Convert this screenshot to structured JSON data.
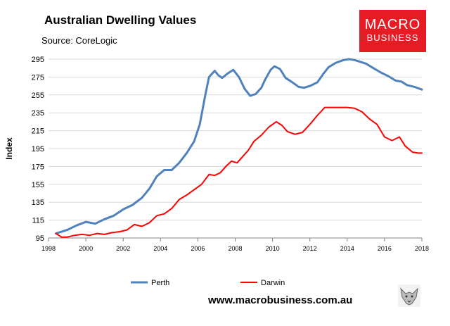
{
  "header": {
    "title": "Australian Dwelling Values",
    "source": "Source: CoreLogic"
  },
  "logo": {
    "line1": "MACRO",
    "line2": "BUSINESS"
  },
  "footer": {
    "url": "www.macrobusiness.com.au"
  },
  "colors": {
    "perth": "#4f81bd",
    "darwin": "#ff0000",
    "logo_bg": "#e61b23"
  },
  "chart_data": {
    "type": "line",
    "title": "Australian Dwelling Values",
    "xlabel": "",
    "ylabel": "Index",
    "xlim": [
      1998,
      2018
    ],
    "ylim": [
      95,
      295
    ],
    "x_ticks": [
      1998,
      2000,
      2002,
      2004,
      2006,
      2008,
      2010,
      2012,
      2014,
      2016,
      2018
    ],
    "y_ticks": [
      95,
      115,
      135,
      155,
      175,
      195,
      215,
      235,
      255,
      275,
      295
    ],
    "legend_position": "bottom",
    "series": [
      {
        "name": "Perth",
        "points": [
          [
            1998.4,
            100
          ],
          [
            1999.0,
            104
          ],
          [
            1999.5,
            109
          ],
          [
            2000.0,
            113
          ],
          [
            2000.5,
            111
          ],
          [
            2001.0,
            116
          ],
          [
            2001.5,
            120
          ],
          [
            2002.0,
            127
          ],
          [
            2002.5,
            132
          ],
          [
            2003.0,
            140
          ],
          [
            2003.4,
            150
          ],
          [
            2003.8,
            164
          ],
          [
            2004.2,
            171
          ],
          [
            2004.6,
            171
          ],
          [
            2005.0,
            179
          ],
          [
            2005.4,
            190
          ],
          [
            2005.8,
            203
          ],
          [
            2006.1,
            222
          ],
          [
            2006.4,
            255
          ],
          [
            2006.6,
            275
          ],
          [
            2006.9,
            282
          ],
          [
            2007.1,
            277
          ],
          [
            2007.3,
            274
          ],
          [
            2007.6,
            279
          ],
          [
            2007.9,
            283
          ],
          [
            2008.2,
            275
          ],
          [
            2008.5,
            262
          ],
          [
            2008.8,
            254
          ],
          [
            2009.1,
            256
          ],
          [
            2009.4,
            263
          ],
          [
            2009.6,
            272
          ],
          [
            2009.9,
            283
          ],
          [
            2010.1,
            287
          ],
          [
            2010.4,
            284
          ],
          [
            2010.7,
            274
          ],
          [
            2011.0,
            270
          ],
          [
            2011.4,
            264
          ],
          [
            2011.7,
            263
          ],
          [
            2012.0,
            265
          ],
          [
            2012.4,
            269
          ],
          [
            2012.7,
            278
          ],
          [
            2013.0,
            286
          ],
          [
            2013.4,
            291
          ],
          [
            2013.8,
            294
          ],
          [
            2014.1,
            295
          ],
          [
            2014.4,
            294
          ],
          [
            2014.7,
            292
          ],
          [
            2015.0,
            290
          ],
          [
            2015.4,
            285
          ],
          [
            2015.8,
            280
          ],
          [
            2016.2,
            276
          ],
          [
            2016.6,
            271
          ],
          [
            2016.9,
            270
          ],
          [
            2017.2,
            266
          ],
          [
            2017.6,
            264
          ],
          [
            2018.0,
            261
          ]
        ]
      },
      {
        "name": "Darwin",
        "points": [
          [
            1998.4,
            100
          ],
          [
            1998.7,
            96
          ],
          [
            1999.0,
            96
          ],
          [
            1999.4,
            98
          ],
          [
            1999.8,
            99
          ],
          [
            2000.2,
            98
          ],
          [
            2000.6,
            100
          ],
          [
            2001.0,
            99
          ],
          [
            2001.4,
            101
          ],
          [
            2001.8,
            102
          ],
          [
            2002.2,
            104
          ],
          [
            2002.6,
            110
          ],
          [
            2003.0,
            108
          ],
          [
            2003.4,
            112
          ],
          [
            2003.8,
            120
          ],
          [
            2004.2,
            122
          ],
          [
            2004.6,
            128
          ],
          [
            2005.0,
            138
          ],
          [
            2005.4,
            143
          ],
          [
            2005.8,
            149
          ],
          [
            2006.2,
            155
          ],
          [
            2006.6,
            166
          ],
          [
            2006.9,
            165
          ],
          [
            2007.2,
            168
          ],
          [
            2007.5,
            175
          ],
          [
            2007.8,
            181
          ],
          [
            2008.1,
            179
          ],
          [
            2008.4,
            186
          ],
          [
            2008.7,
            193
          ],
          [
            2009.0,
            203
          ],
          [
            2009.4,
            210
          ],
          [
            2009.8,
            219
          ],
          [
            2010.2,
            225
          ],
          [
            2010.5,
            221
          ],
          [
            2010.8,
            214
          ],
          [
            2011.2,
            211
          ],
          [
            2011.6,
            213
          ],
          [
            2012.0,
            222
          ],
          [
            2012.4,
            232
          ],
          [
            2012.8,
            241
          ],
          [
            2013.2,
            241
          ],
          [
            2013.6,
            241
          ],
          [
            2014.0,
            241
          ],
          [
            2014.4,
            240
          ],
          [
            2014.8,
            236
          ],
          [
            2015.2,
            228
          ],
          [
            2015.6,
            222
          ],
          [
            2016.0,
            208
          ],
          [
            2016.4,
            204
          ],
          [
            2016.8,
            208
          ],
          [
            2017.1,
            198
          ],
          [
            2017.5,
            191
          ],
          [
            2017.8,
            190
          ],
          [
            2018.0,
            190
          ]
        ]
      }
    ]
  }
}
